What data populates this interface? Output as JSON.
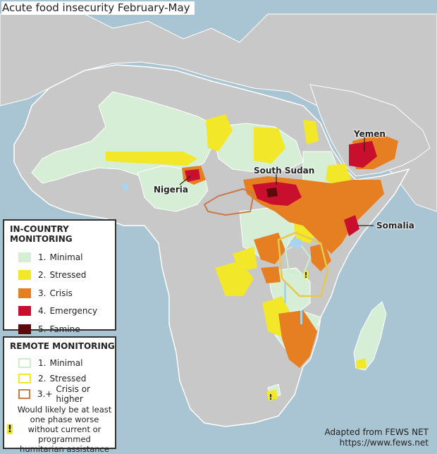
{
  "title": "Acute food insecurity February-May",
  "labels": {
    "nigeria": "Nigeria",
    "south_sudan": "South Sudan",
    "yemen": "Yemen",
    "somalia": "Somalia"
  },
  "legend_in_country": {
    "heading": "IN-COUNTRY MONITORING",
    "items": [
      {
        "num": "1.",
        "label": "Minimal",
        "color": "#d5eed5"
      },
      {
        "num": "2.",
        "label": "Stressed",
        "color": "#f2e829"
      },
      {
        "num": "3.",
        "label": "Crisis",
        "color": "#e67e22"
      },
      {
        "num": "4.",
        "label": "Emergency",
        "color": "#c8102e"
      },
      {
        "num": "5.",
        "label": "Famine",
        "color": "#5c0a0a"
      }
    ]
  },
  "legend_remote": {
    "heading": "REMOTE MONITORING",
    "items": [
      {
        "num": "1.",
        "label": "Minimal",
        "color": "#cdeecd"
      },
      {
        "num": "2.",
        "label": "Stressed",
        "color": "#f2e829"
      },
      {
        "num": "3.+",
        "label": "Crisis or higher",
        "color": "#c87a4a"
      }
    ],
    "note_symbol": "!",
    "note": "Would likely be at least one phase worse without current or programmed humitarian assistance"
  },
  "credit": {
    "line1": "Adapted from FEWS NET",
    "line2": "https://www.fews.net"
  },
  "colors": {
    "ocean": "#a9c5d3",
    "land_other": "#c8c8c8",
    "minimal": "#d5eed5",
    "stressed": "#f2e829",
    "crisis": "#e67e22",
    "emergency": "#c8102e",
    "famine": "#5c0a0a",
    "lake": "#a9d4ee"
  }
}
